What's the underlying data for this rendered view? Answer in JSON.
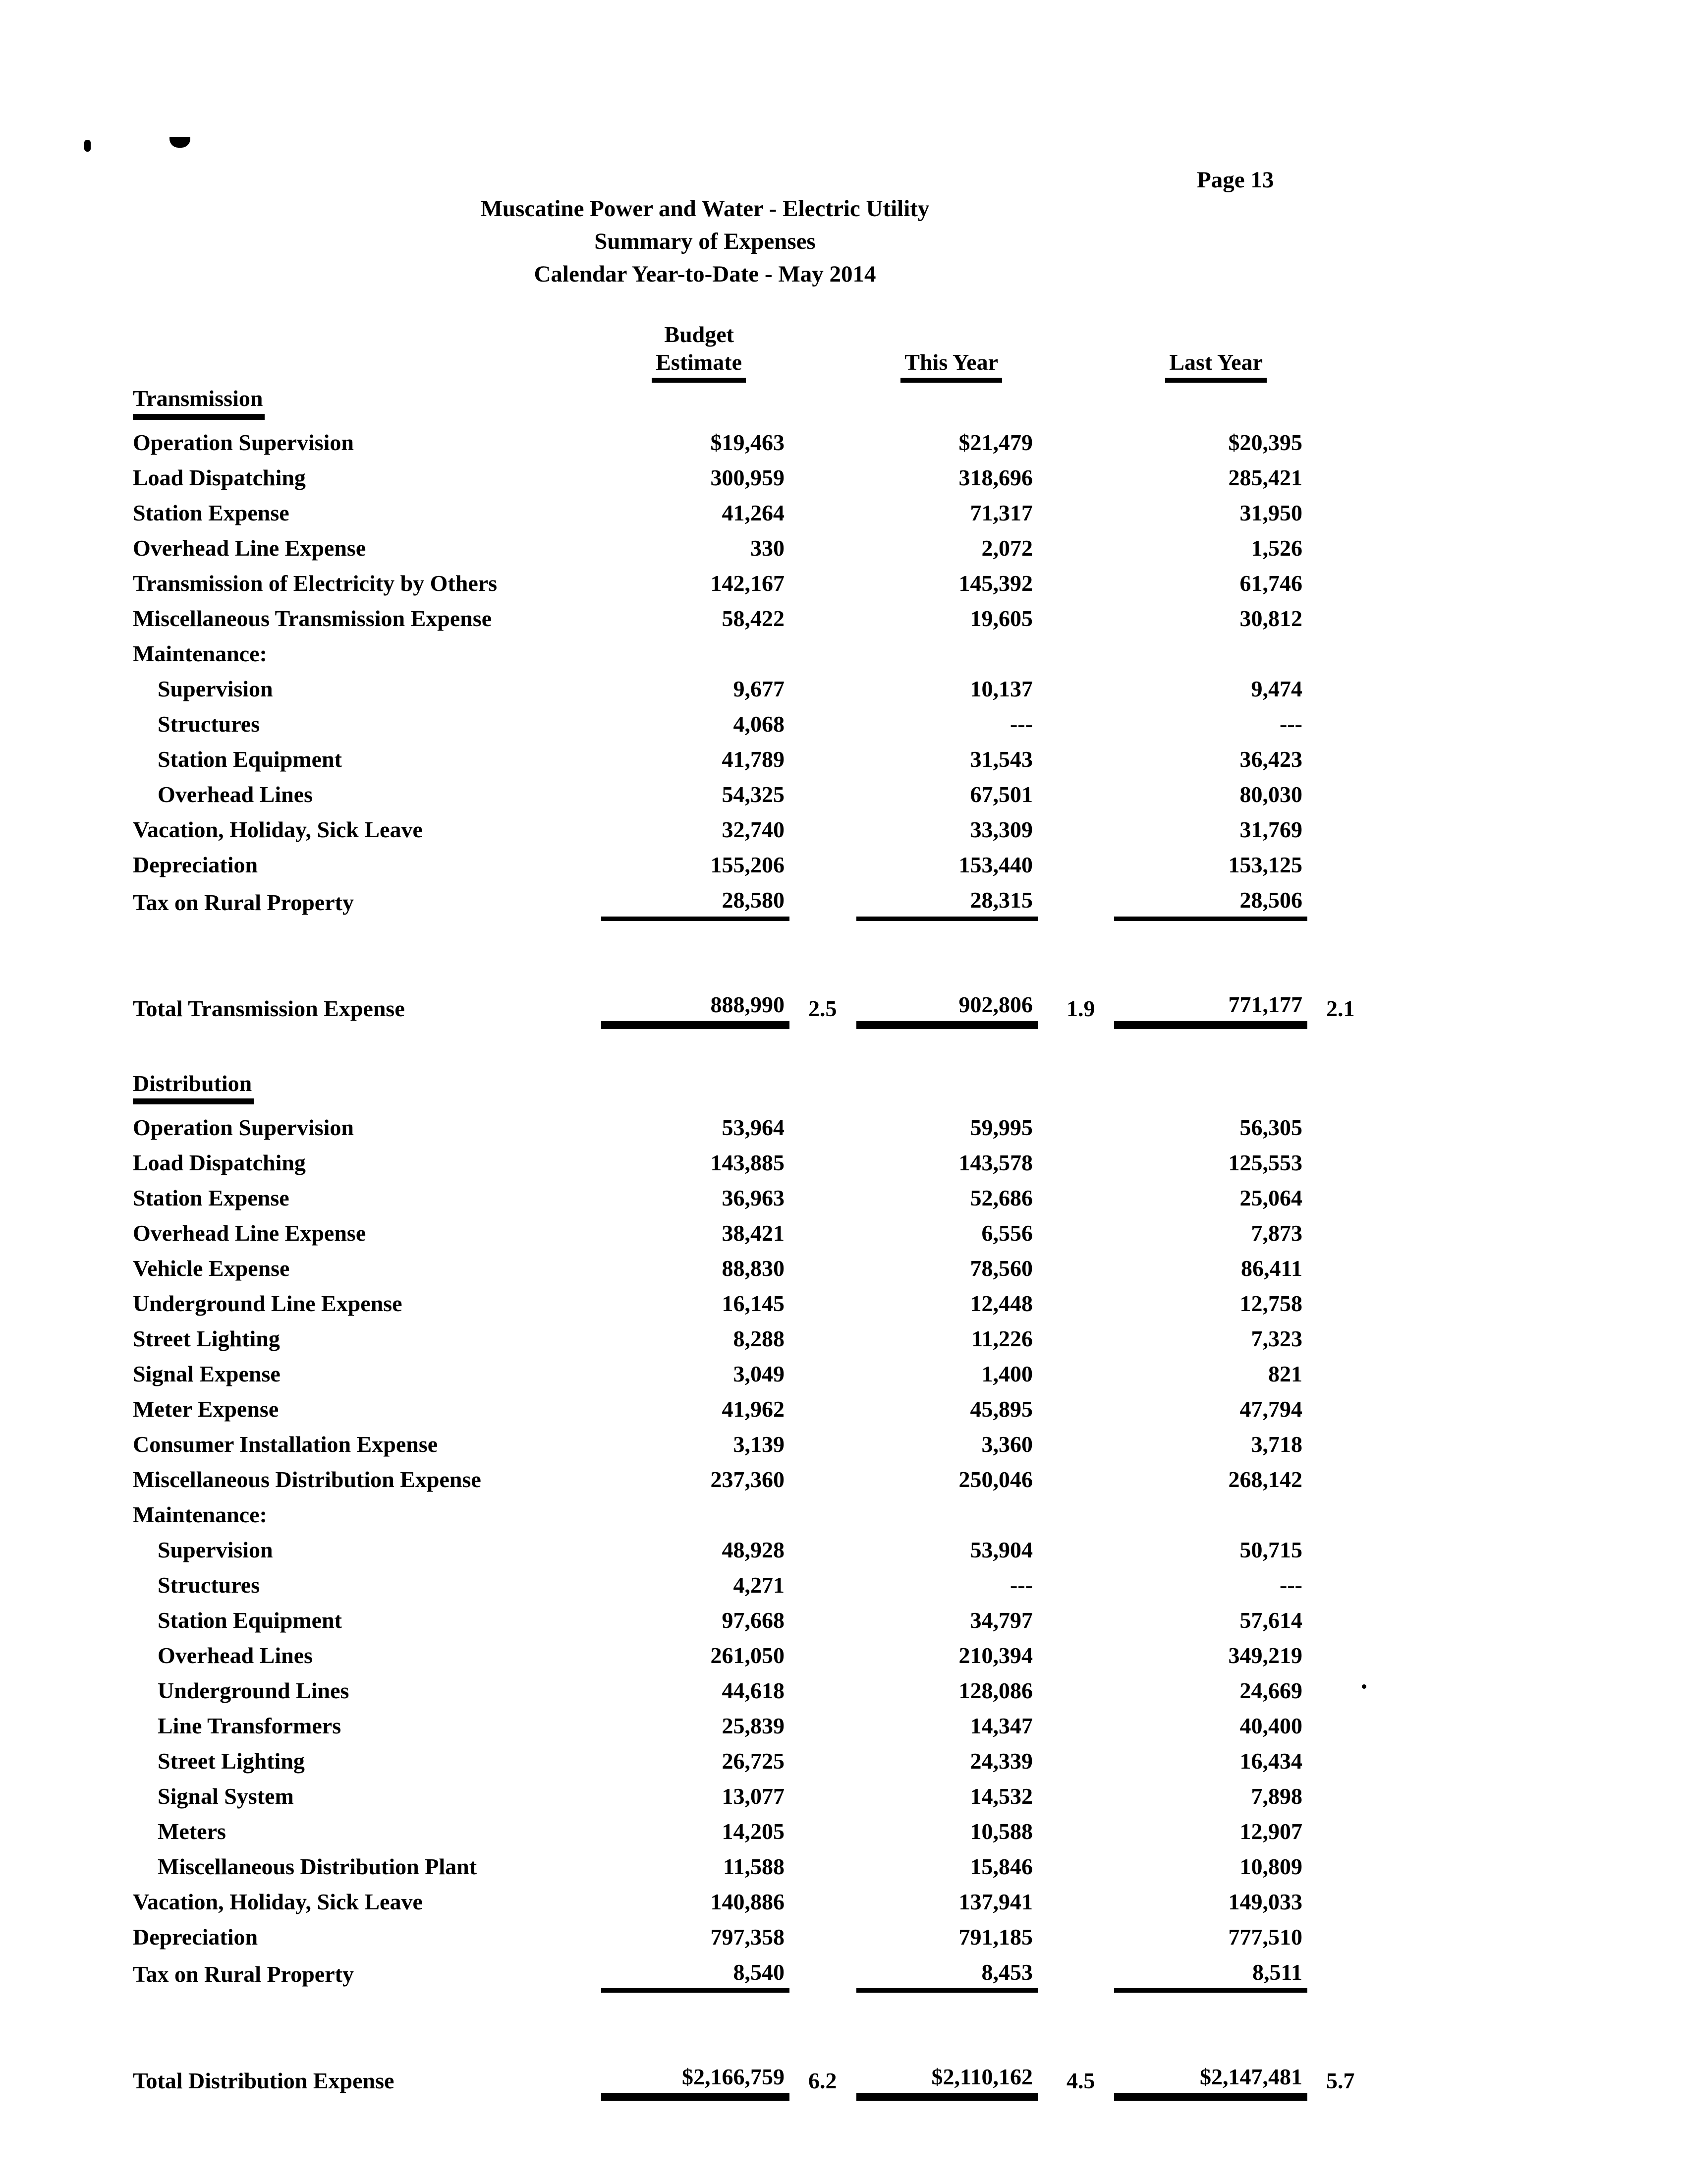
{
  "page": {
    "number": "Page 13"
  },
  "title": {
    "line1": "Muscatine Power and Water - Electric Utility",
    "line2": "Summary of Expenses",
    "line3": "Calendar Year-to-Date - May 2014"
  },
  "columns": {
    "budget_line1": "Budget",
    "budget_line2": "Estimate",
    "this_year": "This Year",
    "last_year": "Last Year"
  },
  "sections": [
    {
      "name": "Transmission",
      "rows": [
        {
          "label": "Operation Supervision",
          "indent": 0,
          "budget": "$19,463",
          "this_year": "$21,479",
          "last_year": "$20,395"
        },
        {
          "label": "Load Dispatching",
          "indent": 0,
          "budget": "300,959",
          "this_year": "318,696",
          "last_year": "285,421"
        },
        {
          "label": "Station Expense",
          "indent": 0,
          "budget": "41,264",
          "this_year": "71,317",
          "last_year": "31,950"
        },
        {
          "label": "Overhead Line Expense",
          "indent": 0,
          "budget": "330",
          "this_year": "2,072",
          "last_year": "1,526"
        },
        {
          "label": "Transmission of Electricity by Others",
          "indent": 0,
          "budget": "142,167",
          "this_year": "145,392",
          "last_year": "61,746"
        },
        {
          "label": "Miscellaneous Transmission Expense",
          "indent": 0,
          "budget": "58,422",
          "this_year": "19,605",
          "last_year": "30,812"
        },
        {
          "label": "Maintenance:",
          "indent": 0,
          "budget": "",
          "this_year": "",
          "last_year": ""
        },
        {
          "label": "Supervision",
          "indent": 1,
          "budget": "9,677",
          "this_year": "10,137",
          "last_year": "9,474"
        },
        {
          "label": "Structures",
          "indent": 1,
          "budget": "4,068",
          "this_year": "---",
          "last_year": "---"
        },
        {
          "label": "Station Equipment",
          "indent": 1,
          "budget": "41,789",
          "this_year": "31,543",
          "last_year": "36,423"
        },
        {
          "label": "Overhead Lines",
          "indent": 1,
          "budget": "54,325",
          "this_year": "67,501",
          "last_year": "80,030"
        },
        {
          "label": "Vacation, Holiday, Sick Leave",
          "indent": 0,
          "budget": "32,740",
          "this_year": "33,309",
          "last_year": "31,769"
        },
        {
          "label": "Depreciation",
          "indent": 0,
          "budget": "155,206",
          "this_year": "153,440",
          "last_year": "153,125"
        },
        {
          "label": "Tax on Rural Property",
          "indent": 0,
          "budget": "28,580",
          "this_year": "28,315",
          "last_year": "28,506",
          "underline": true
        }
      ],
      "total": {
        "label": "Total Transmission Expense",
        "budget": "888,990",
        "budget_pct": "2.5",
        "this_year": "902,806",
        "this_year_pct": "1.9",
        "last_year": "771,177",
        "last_year_pct": "2.1"
      }
    },
    {
      "name": "Distribution",
      "rows": [
        {
          "label": "Operation Supervision",
          "indent": 0,
          "budget": "53,964",
          "this_year": "59,995",
          "last_year": "56,305"
        },
        {
          "label": "Load Dispatching",
          "indent": 0,
          "budget": "143,885",
          "this_year": "143,578",
          "last_year": "125,553"
        },
        {
          "label": "Station Expense",
          "indent": 0,
          "budget": "36,963",
          "this_year": "52,686",
          "last_year": "25,064"
        },
        {
          "label": "Overhead Line Expense",
          "indent": 0,
          "budget": "38,421",
          "this_year": "6,556",
          "last_year": "7,873"
        },
        {
          "label": "Vehicle Expense",
          "indent": 0,
          "budget": "88,830",
          "this_year": "78,560",
          "last_year": "86,411"
        },
        {
          "label": "Underground Line Expense",
          "indent": 0,
          "budget": "16,145",
          "this_year": "12,448",
          "last_year": "12,758"
        },
        {
          "label": "Street Lighting",
          "indent": 0,
          "budget": "8,288",
          "this_year": "11,226",
          "last_year": "7,323"
        },
        {
          "label": "Signal Expense",
          "indent": 0,
          "budget": "3,049",
          "this_year": "1,400",
          "last_year": "821"
        },
        {
          "label": "Meter Expense",
          "indent": 0,
          "budget": "41,962",
          "this_year": "45,895",
          "last_year": "47,794"
        },
        {
          "label": "Consumer Installation Expense",
          "indent": 0,
          "budget": "3,139",
          "this_year": "3,360",
          "last_year": "3,718"
        },
        {
          "label": "Miscellaneous Distribution Expense",
          "indent": 0,
          "budget": "237,360",
          "this_year": "250,046",
          "last_year": "268,142"
        },
        {
          "label": "Maintenance:",
          "indent": 0,
          "budget": "",
          "this_year": "",
          "last_year": ""
        },
        {
          "label": "Supervision",
          "indent": 1,
          "budget": "48,928",
          "this_year": "53,904",
          "last_year": "50,715"
        },
        {
          "label": "Structures",
          "indent": 1,
          "budget": "4,271",
          "this_year": "---",
          "last_year": "---"
        },
        {
          "label": "Station Equipment",
          "indent": 1,
          "budget": "97,668",
          "this_year": "34,797",
          "last_year": "57,614"
        },
        {
          "label": "Overhead Lines",
          "indent": 1,
          "budget": "261,050",
          "this_year": "210,394",
          "last_year": "349,219"
        },
        {
          "label": "Underground Lines",
          "indent": 1,
          "budget": "44,618",
          "this_year": "128,086",
          "last_year": "24,669"
        },
        {
          "label": "Line Transformers",
          "indent": 1,
          "budget": "25,839",
          "this_year": "14,347",
          "last_year": "40,400"
        },
        {
          "label": "Street Lighting",
          "indent": 1,
          "budget": "26,725",
          "this_year": "24,339",
          "last_year": "16,434"
        },
        {
          "label": "Signal System",
          "indent": 1,
          "budget": "13,077",
          "this_year": "14,532",
          "last_year": "7,898"
        },
        {
          "label": "Meters",
          "indent": 1,
          "budget": "14,205",
          "this_year": "10,588",
          "last_year": "12,907"
        },
        {
          "label": "Miscellaneous Distribution Plant",
          "indent": 1,
          "budget": "11,588",
          "this_year": "15,846",
          "last_year": "10,809"
        },
        {
          "label": "Vacation, Holiday, Sick Leave",
          "indent": 0,
          "budget": "140,886",
          "this_year": "137,941",
          "last_year": "149,033"
        },
        {
          "label": "Depreciation",
          "indent": 0,
          "budget": "797,358",
          "this_year": "791,185",
          "last_year": "777,510"
        },
        {
          "label": "Tax on Rural Property",
          "indent": 0,
          "budget": "8,540",
          "this_year": "8,453",
          "last_year": "8,511",
          "underline": true
        }
      ],
      "total": {
        "label": "Total Distribution Expense",
        "budget": "$2,166,759",
        "budget_pct": "6.2",
        "this_year": "$2,110,162",
        "this_year_pct": "4.5",
        "last_year": "$2,147,481",
        "last_year_pct": "5.7"
      }
    }
  ]
}
